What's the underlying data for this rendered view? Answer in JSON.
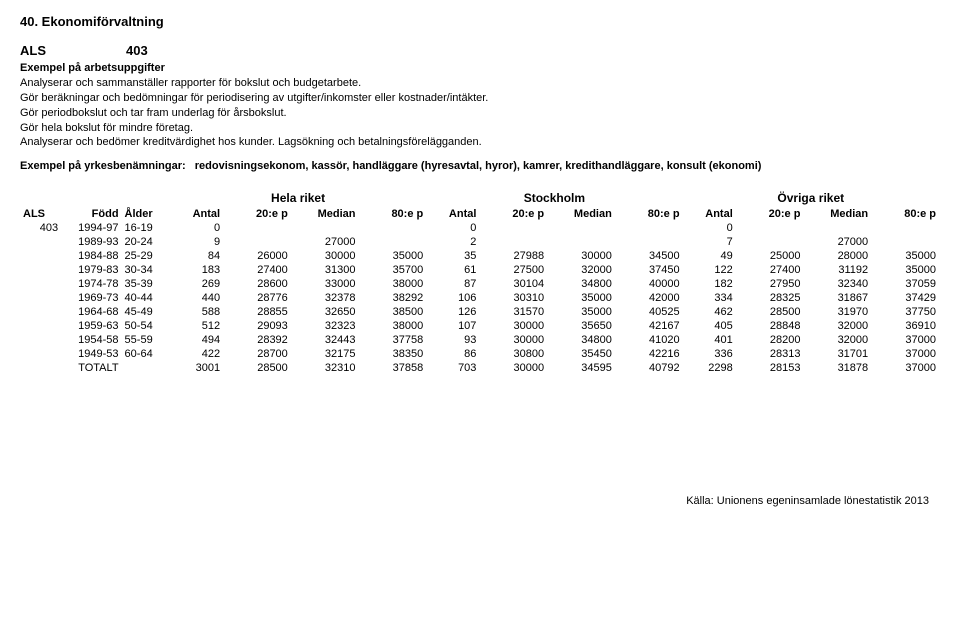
{
  "section_title": "40. Ekonomiförvaltning",
  "code": {
    "als": "ALS",
    "num": "403"
  },
  "exempel_arbets_label": "Exempel på arbetsuppgifter",
  "besk_lines": [
    "Analyserar och sammanställer rapporter för bokslut och budgetarbete.",
    "Gör beräkningar och bedömningar för periodisering av utgifter/inkomster eller kostnader/intäkter.",
    "Gör periodbokslut och tar fram underlag för årsbokslut.",
    "Gör hela bokslut för mindre företag.",
    "Analyserar och bedömer kreditvärdighet hos kunder. Lagsökning och betalningsförelägganden."
  ],
  "yrk_label": "Exempel på yrkesbenämningar:",
  "yrk_val": "redovisningsekonom, kassör, handläggare (hyresavtal, hyror), kamrer, kredithandläggare, konsult (ekonomi)",
  "groups": {
    "g1": "Hela riket",
    "g2": "Stockholm",
    "g3": "Övriga riket"
  },
  "headers": {
    "als": "ALS",
    "fodd": "Född",
    "alder": "Ålder",
    "antal": "Antal",
    "p20": "20:e p",
    "median": "Median",
    "p80": "80:e p"
  },
  "als_code": "403",
  "rows": [
    {
      "fodd": "1994-97",
      "alder": "16-19",
      "a1": "0",
      "p20_1": "",
      "med_1": "",
      "p80_1": "",
      "a2": "0",
      "p20_2": "",
      "med_2": "",
      "p80_2": "",
      "a3": "0",
      "p20_3": "",
      "med_3": "",
      "p80_3": ""
    },
    {
      "fodd": "1989-93",
      "alder": "20-24",
      "a1": "9",
      "p20_1": "",
      "med_1": "27000",
      "p80_1": "",
      "a2": "2",
      "p20_2": "",
      "med_2": "",
      "p80_2": "",
      "a3": "7",
      "p20_3": "",
      "med_3": "27000",
      "p80_3": ""
    },
    {
      "fodd": "1984-88",
      "alder": "25-29",
      "a1": "84",
      "p20_1": "26000",
      "med_1": "30000",
      "p80_1": "35000",
      "a2": "35",
      "p20_2": "27988",
      "med_2": "30000",
      "p80_2": "34500",
      "a3": "49",
      "p20_3": "25000",
      "med_3": "28000",
      "p80_3": "35000"
    },
    {
      "fodd": "1979-83",
      "alder": "30-34",
      "a1": "183",
      "p20_1": "27400",
      "med_1": "31300",
      "p80_1": "35700",
      "a2": "61",
      "p20_2": "27500",
      "med_2": "32000",
      "p80_2": "37450",
      "a3": "122",
      "p20_3": "27400",
      "med_3": "31192",
      "p80_3": "35000"
    },
    {
      "fodd": "1974-78",
      "alder": "35-39",
      "a1": "269",
      "p20_1": "28600",
      "med_1": "33000",
      "p80_1": "38000",
      "a2": "87",
      "p20_2": "30104",
      "med_2": "34800",
      "p80_2": "40000",
      "a3": "182",
      "p20_3": "27950",
      "med_3": "32340",
      "p80_3": "37059"
    },
    {
      "fodd": "1969-73",
      "alder": "40-44",
      "a1": "440",
      "p20_1": "28776",
      "med_1": "32378",
      "p80_1": "38292",
      "a2": "106",
      "p20_2": "30310",
      "med_2": "35000",
      "p80_2": "42000",
      "a3": "334",
      "p20_3": "28325",
      "med_3": "31867",
      "p80_3": "37429"
    },
    {
      "fodd": "1964-68",
      "alder": "45-49",
      "a1": "588",
      "p20_1": "28855",
      "med_1": "32650",
      "p80_1": "38500",
      "a2": "126",
      "p20_2": "31570",
      "med_2": "35000",
      "p80_2": "40525",
      "a3": "462",
      "p20_3": "28500",
      "med_3": "31970",
      "p80_3": "37750"
    },
    {
      "fodd": "1959-63",
      "alder": "50-54",
      "a1": "512",
      "p20_1": "29093",
      "med_1": "32323",
      "p80_1": "38000",
      "a2": "107",
      "p20_2": "30000",
      "med_2": "35650",
      "p80_2": "42167",
      "a3": "405",
      "p20_3": "28848",
      "med_3": "32000",
      "p80_3": "36910"
    },
    {
      "fodd": "1954-58",
      "alder": "55-59",
      "a1": "494",
      "p20_1": "28392",
      "med_1": "32443",
      "p80_1": "37758",
      "a2": "93",
      "p20_2": "30000",
      "med_2": "34800",
      "p80_2": "41020",
      "a3": "401",
      "p20_3": "28200",
      "med_3": "32000",
      "p80_3": "37000"
    },
    {
      "fodd": "1949-53",
      "alder": "60-64",
      "a1": "422",
      "p20_1": "28700",
      "med_1": "32175",
      "p80_1": "38350",
      "a2": "86",
      "p20_2": "30800",
      "med_2": "35450",
      "p80_2": "42216",
      "a3": "336",
      "p20_3": "28313",
      "med_3": "31701",
      "p80_3": "37000"
    },
    {
      "fodd": "TOTALT",
      "alder": "",
      "a1": "3001",
      "p20_1": "28500",
      "med_1": "32310",
      "p80_1": "37858",
      "a2": "703",
      "p20_2": "30000",
      "med_2": "34595",
      "p80_2": "40792",
      "a3": "2298",
      "p20_3": "28153",
      "med_3": "31878",
      "p80_3": "37000"
    }
  ],
  "footer": "Källa: Unionens egeninsamlade lönestatistik 2013"
}
